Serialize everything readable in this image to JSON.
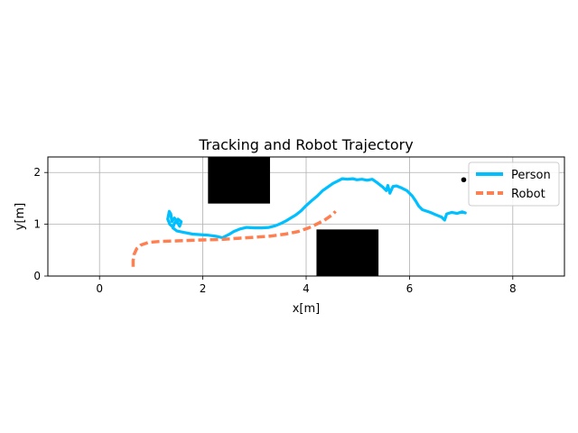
{
  "chart_data": {
    "type": "line",
    "title": "Tracking and Robot Trajectory",
    "xlabel": "x[m]",
    "ylabel": "y[m]",
    "xlim": [
      -1,
      9
    ],
    "ylim": [
      0,
      2.3
    ],
    "xticks": [
      0,
      2,
      4,
      6,
      8
    ],
    "yticks": [
      0,
      1,
      2
    ],
    "grid": true,
    "legend_position": "top-right",
    "obstacles": [
      {
        "x0": 2.1,
        "x1": 3.3,
        "y0": 1.4,
        "y1": 2.3,
        "color": "#000000"
      },
      {
        "x0": 4.2,
        "x1": 5.4,
        "y0": 0.0,
        "y1": 0.9,
        "color": "#000000"
      }
    ],
    "goal_point": {
      "x": 7.05,
      "y": 1.86,
      "color": "#000000"
    },
    "series": [
      {
        "name": "Person",
        "color": "#00bfff",
        "style": "solid",
        "points": [
          [
            7.08,
            1.22
          ],
          [
            7.02,
            1.24
          ],
          [
            6.92,
            1.21
          ],
          [
            6.82,
            1.23
          ],
          [
            6.72,
            1.2
          ],
          [
            6.68,
            1.08
          ],
          [
            6.62,
            1.14
          ],
          [
            6.52,
            1.18
          ],
          [
            6.4,
            1.23
          ],
          [
            6.25,
            1.28
          ],
          [
            6.18,
            1.35
          ],
          [
            6.12,
            1.45
          ],
          [
            6.05,
            1.55
          ],
          [
            5.95,
            1.65
          ],
          [
            5.85,
            1.7
          ],
          [
            5.75,
            1.74
          ],
          [
            5.68,
            1.73
          ],
          [
            5.62,
            1.6
          ],
          [
            5.58,
            1.75
          ],
          [
            5.55,
            1.65
          ],
          [
            5.48,
            1.72
          ],
          [
            5.38,
            1.8
          ],
          [
            5.28,
            1.87
          ],
          [
            5.18,
            1.85
          ],
          [
            5.08,
            1.87
          ],
          [
            4.98,
            1.86
          ],
          [
            4.9,
            1.88
          ],
          [
            4.8,
            1.87
          ],
          [
            4.7,
            1.88
          ],
          [
            4.62,
            1.84
          ],
          [
            4.52,
            1.79
          ],
          [
            4.42,
            1.72
          ],
          [
            4.32,
            1.65
          ],
          [
            4.22,
            1.55
          ],
          [
            4.1,
            1.45
          ],
          [
            4.0,
            1.36
          ],
          [
            3.9,
            1.26
          ],
          [
            3.8,
            1.18
          ],
          [
            3.7,
            1.12
          ],
          [
            3.6,
            1.06
          ],
          [
            3.5,
            1.01
          ],
          [
            3.4,
            0.97
          ],
          [
            3.28,
            0.94
          ],
          [
            3.15,
            0.93
          ],
          [
            3.0,
            0.93
          ],
          [
            2.85,
            0.94
          ],
          [
            2.72,
            0.91
          ],
          [
            2.6,
            0.86
          ],
          [
            2.5,
            0.8
          ],
          [
            2.38,
            0.74
          ],
          [
            2.25,
            0.77
          ],
          [
            2.1,
            0.79
          ],
          [
            1.95,
            0.8
          ],
          [
            1.8,
            0.81
          ],
          [
            1.65,
            0.84
          ],
          [
            1.5,
            0.87
          ],
          [
            1.42,
            0.93
          ],
          [
            1.45,
            1.02
          ],
          [
            1.52,
            1.1
          ],
          [
            1.58,
            1.05
          ],
          [
            1.55,
            0.96
          ],
          [
            1.5,
            1.05
          ],
          [
            1.45,
            1.12
          ],
          [
            1.4,
            1.05
          ],
          [
            1.38,
            1.2
          ],
          [
            1.35,
            1.25
          ],
          [
            1.32,
            1.1
          ],
          [
            1.36,
            1.0
          ],
          [
            1.42,
            0.95
          ]
        ]
      },
      {
        "name": "Robot",
        "color": "#ff7f50",
        "style": "dashed",
        "points": [
          [
            0.65,
            0.18
          ],
          [
            0.65,
            0.3
          ],
          [
            0.67,
            0.42
          ],
          [
            0.72,
            0.53
          ],
          [
            0.8,
            0.6
          ],
          [
            0.95,
            0.65
          ],
          [
            1.2,
            0.67
          ],
          [
            1.5,
            0.68
          ],
          [
            1.8,
            0.69
          ],
          [
            2.1,
            0.7
          ],
          [
            2.4,
            0.71
          ],
          [
            2.7,
            0.73
          ],
          [
            3.0,
            0.75
          ],
          [
            3.3,
            0.77
          ],
          [
            3.6,
            0.81
          ],
          [
            3.85,
            0.86
          ],
          [
            4.05,
            0.93
          ],
          [
            4.22,
            1.01
          ],
          [
            4.37,
            1.09
          ],
          [
            4.5,
            1.18
          ],
          [
            4.57,
            1.25
          ]
        ]
      }
    ]
  }
}
